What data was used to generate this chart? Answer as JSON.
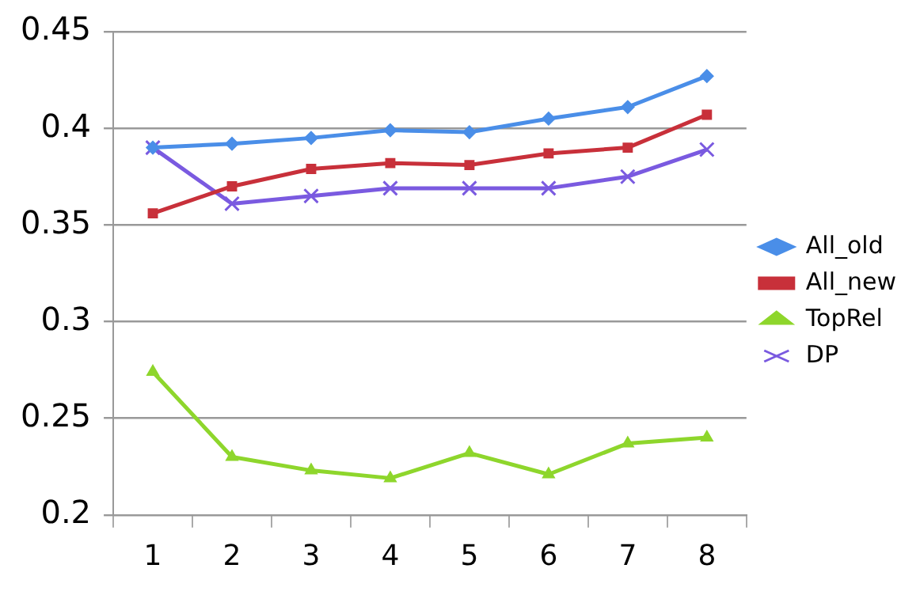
{
  "chart_data": {
    "type": "line",
    "categories": [
      "1",
      "2",
      "3",
      "4",
      "5",
      "6",
      "7",
      "8"
    ],
    "series": [
      {
        "name": "All_old",
        "color": "#4a8ee8",
        "marker": "diamond",
        "values": [
          0.39,
          0.392,
          0.395,
          0.399,
          0.398,
          0.405,
          0.411,
          0.427
        ]
      },
      {
        "name": "All_new",
        "color": "#c8303a",
        "marker": "square",
        "values": [
          0.356,
          0.37,
          0.379,
          0.382,
          0.381,
          0.387,
          0.39,
          0.407
        ]
      },
      {
        "name": "TopRel",
        "color": "#8ed62c",
        "marker": "triangle",
        "values": [
          0.274,
          0.23,
          0.223,
          0.219,
          0.232,
          0.221,
          0.237,
          0.24
        ]
      },
      {
        "name": "DP",
        "color": "#7a5ae0",
        "marker": "cross",
        "values": [
          0.39,
          0.361,
          0.365,
          0.369,
          0.369,
          0.369,
          0.375,
          0.389
        ]
      }
    ],
    "ylim": [
      0.2,
      0.45
    ],
    "yticks": [
      0.2,
      0.25,
      0.3,
      0.35,
      0.4,
      0.45
    ],
    "grid": "y",
    "legend": "right",
    "line_style": "solid"
  }
}
